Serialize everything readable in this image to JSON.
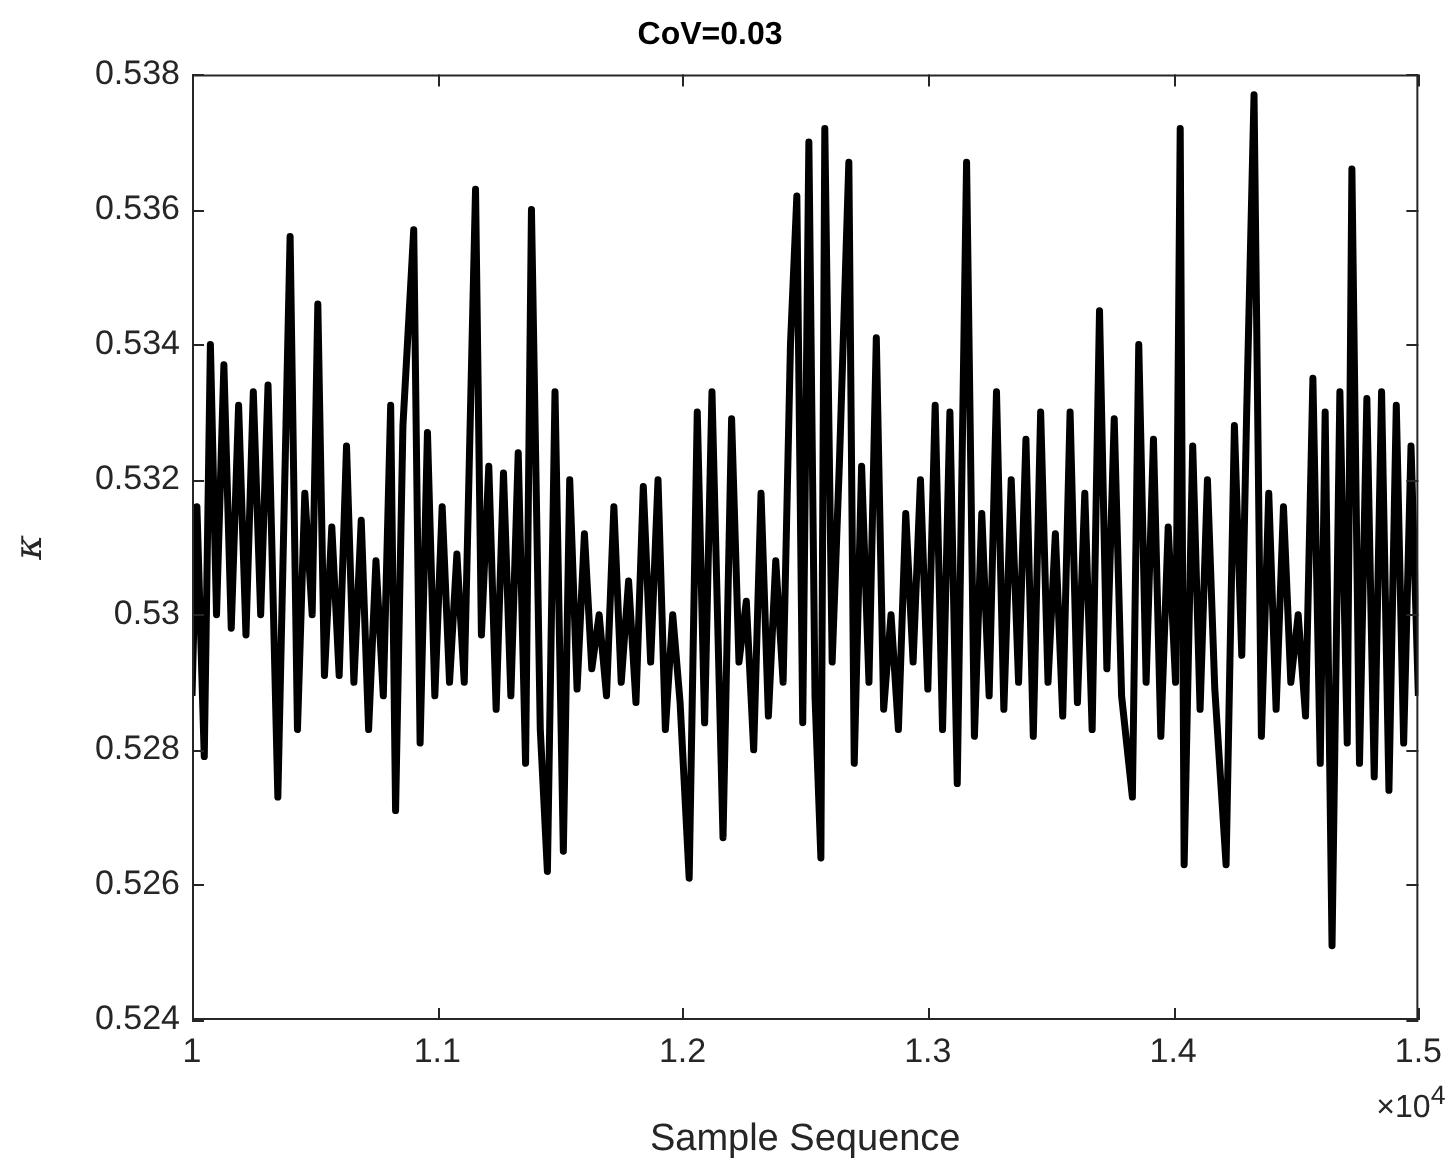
{
  "chart_data": {
    "type": "line",
    "title": "CoV=0.03",
    "xlabel": "Sample Sequence",
    "ylabel": "κ",
    "annotations": [
      "×10$^{4}$"
    ],
    "xlim": [
      1,
      1.5
    ],
    "xticks": [
      1,
      1.1,
      1.2,
      1.3,
      1.4,
      1.5
    ],
    "ylim": [
      0.524,
      0.538
    ],
    "yticks": [
      0.524,
      0.526,
      0.528,
      0.53,
      0.532,
      0.534,
      0.536,
      0.538
    ],
    "series": [
      {
        "color": "#000000",
        "x": [
          1.0,
          1.002,
          1.005,
          1.0075,
          1.01,
          1.013,
          1.016,
          1.019,
          1.022,
          1.025,
          1.028,
          1.031,
          1.035,
          1.04,
          1.043,
          1.046,
          1.049,
          1.0513,
          1.054,
          1.057,
          1.06,
          1.063,
          1.066,
          1.069,
          1.072,
          1.075,
          1.078,
          1.081,
          1.083,
          1.086,
          1.0904,
          1.093,
          1.096,
          1.099,
          1.102,
          1.105,
          1.108,
          1.111,
          1.1156,
          1.118,
          1.121,
          1.124,
          1.127,
          1.13,
          1.133,
          1.136,
          1.1384,
          1.142,
          1.1449,
          1.148,
          1.1514,
          1.154,
          1.157,
          1.16,
          1.163,
          1.166,
          1.169,
          1.172,
          1.175,
          1.178,
          1.181,
          1.184,
          1.187,
          1.19,
          1.193,
          1.196,
          1.199,
          1.2027,
          1.206,
          1.209,
          1.212,
          1.2165,
          1.22,
          1.223,
          1.226,
          1.229,
          1.232,
          1.235,
          1.238,
          1.241,
          1.244,
          1.2466,
          1.249,
          1.2515,
          1.254,
          1.2564,
          1.258,
          1.261,
          1.264,
          1.2678,
          1.27,
          1.273,
          1.276,
          1.279,
          1.282,
          1.285,
          1.288,
          1.291,
          1.294,
          1.297,
          1.3,
          1.303,
          1.306,
          1.309,
          1.312,
          1.3158,
          1.319,
          1.322,
          1.325,
          1.328,
          1.331,
          1.334,
          1.337,
          1.34,
          1.343,
          1.346,
          1.349,
          1.352,
          1.355,
          1.358,
          1.361,
          1.364,
          1.367,
          1.37,
          1.373,
          1.376,
          1.379,
          1.3834,
          1.386,
          1.389,
          1.392,
          1.395,
          1.398,
          1.401,
          1.4029,
          1.4045,
          1.408,
          1.411,
          1.414,
          1.417,
          1.4216,
          1.425,
          1.428,
          1.43,
          1.433,
          1.436,
          1.439,
          1.442,
          1.445,
          1.448,
          1.451,
          1.454,
          1.457,
          1.46,
          1.462,
          1.4648,
          1.468,
          1.471,
          1.4729,
          1.476,
          1.479,
          1.482,
          1.485,
          1.488,
          1.491,
          1.494,
          1.497,
          1.5
        ],
        "values": [
          0.5288,
          0.5316,
          0.5279,
          0.534,
          0.53,
          0.5337,
          0.5298,
          0.5331,
          0.5297,
          0.5333,
          0.53,
          0.5334,
          0.5273,
          0.5356,
          0.5283,
          0.5318,
          0.53,
          0.5346,
          0.5291,
          0.5313,
          0.5291,
          0.5325,
          0.529,
          0.5314,
          0.5283,
          0.5308,
          0.5288,
          0.5331,
          0.5271,
          0.5328,
          0.5357,
          0.5281,
          0.5327,
          0.5288,
          0.5316,
          0.529,
          0.5309,
          0.529,
          0.5363,
          0.5297,
          0.5322,
          0.5286,
          0.5321,
          0.5288,
          0.5324,
          0.5278,
          0.536,
          0.5283,
          0.5262,
          0.5333,
          0.5265,
          0.532,
          0.5289,
          0.5312,
          0.5292,
          0.53,
          0.5288,
          0.5316,
          0.529,
          0.5305,
          0.5287,
          0.5319,
          0.5293,
          0.532,
          0.5283,
          0.53,
          0.5287,
          0.5261,
          0.533,
          0.5284,
          0.5333,
          0.5267,
          0.5329,
          0.5293,
          0.5302,
          0.528,
          0.5318,
          0.5285,
          0.5308,
          0.529,
          0.534,
          0.5362,
          0.5284,
          0.537,
          0.5288,
          0.5264,
          0.5372,
          0.5293,
          0.5323,
          0.5367,
          0.5278,
          0.5322,
          0.529,
          0.5341,
          0.5286,
          0.53,
          0.5283,
          0.5315,
          0.5293,
          0.532,
          0.5289,
          0.5331,
          0.5283,
          0.533,
          0.5275,
          0.5367,
          0.5282,
          0.5315,
          0.5288,
          0.5333,
          0.5286,
          0.532,
          0.529,
          0.5326,
          0.5282,
          0.533,
          0.529,
          0.5312,
          0.5285,
          0.533,
          0.5287,
          0.5318,
          0.5283,
          0.5345,
          0.5292,
          0.5329,
          0.5288,
          0.5273,
          0.534,
          0.529,
          0.5326,
          0.5282,
          0.5313,
          0.529,
          0.5372,
          0.5263,
          0.5325,
          0.5286,
          0.532,
          0.5289,
          0.5263,
          0.5328,
          0.5294,
          0.533,
          0.5377,
          0.5282,
          0.5318,
          0.5286,
          0.5316,
          0.529,
          0.53,
          0.5285,
          0.5335,
          0.5278,
          0.533,
          0.5251,
          0.5333,
          0.5281,
          0.5366,
          0.5278,
          0.5332,
          0.5276,
          0.5333,
          0.5274,
          0.5331,
          0.5281,
          0.5325,
          0.5288
        ]
      }
    ]
  }
}
